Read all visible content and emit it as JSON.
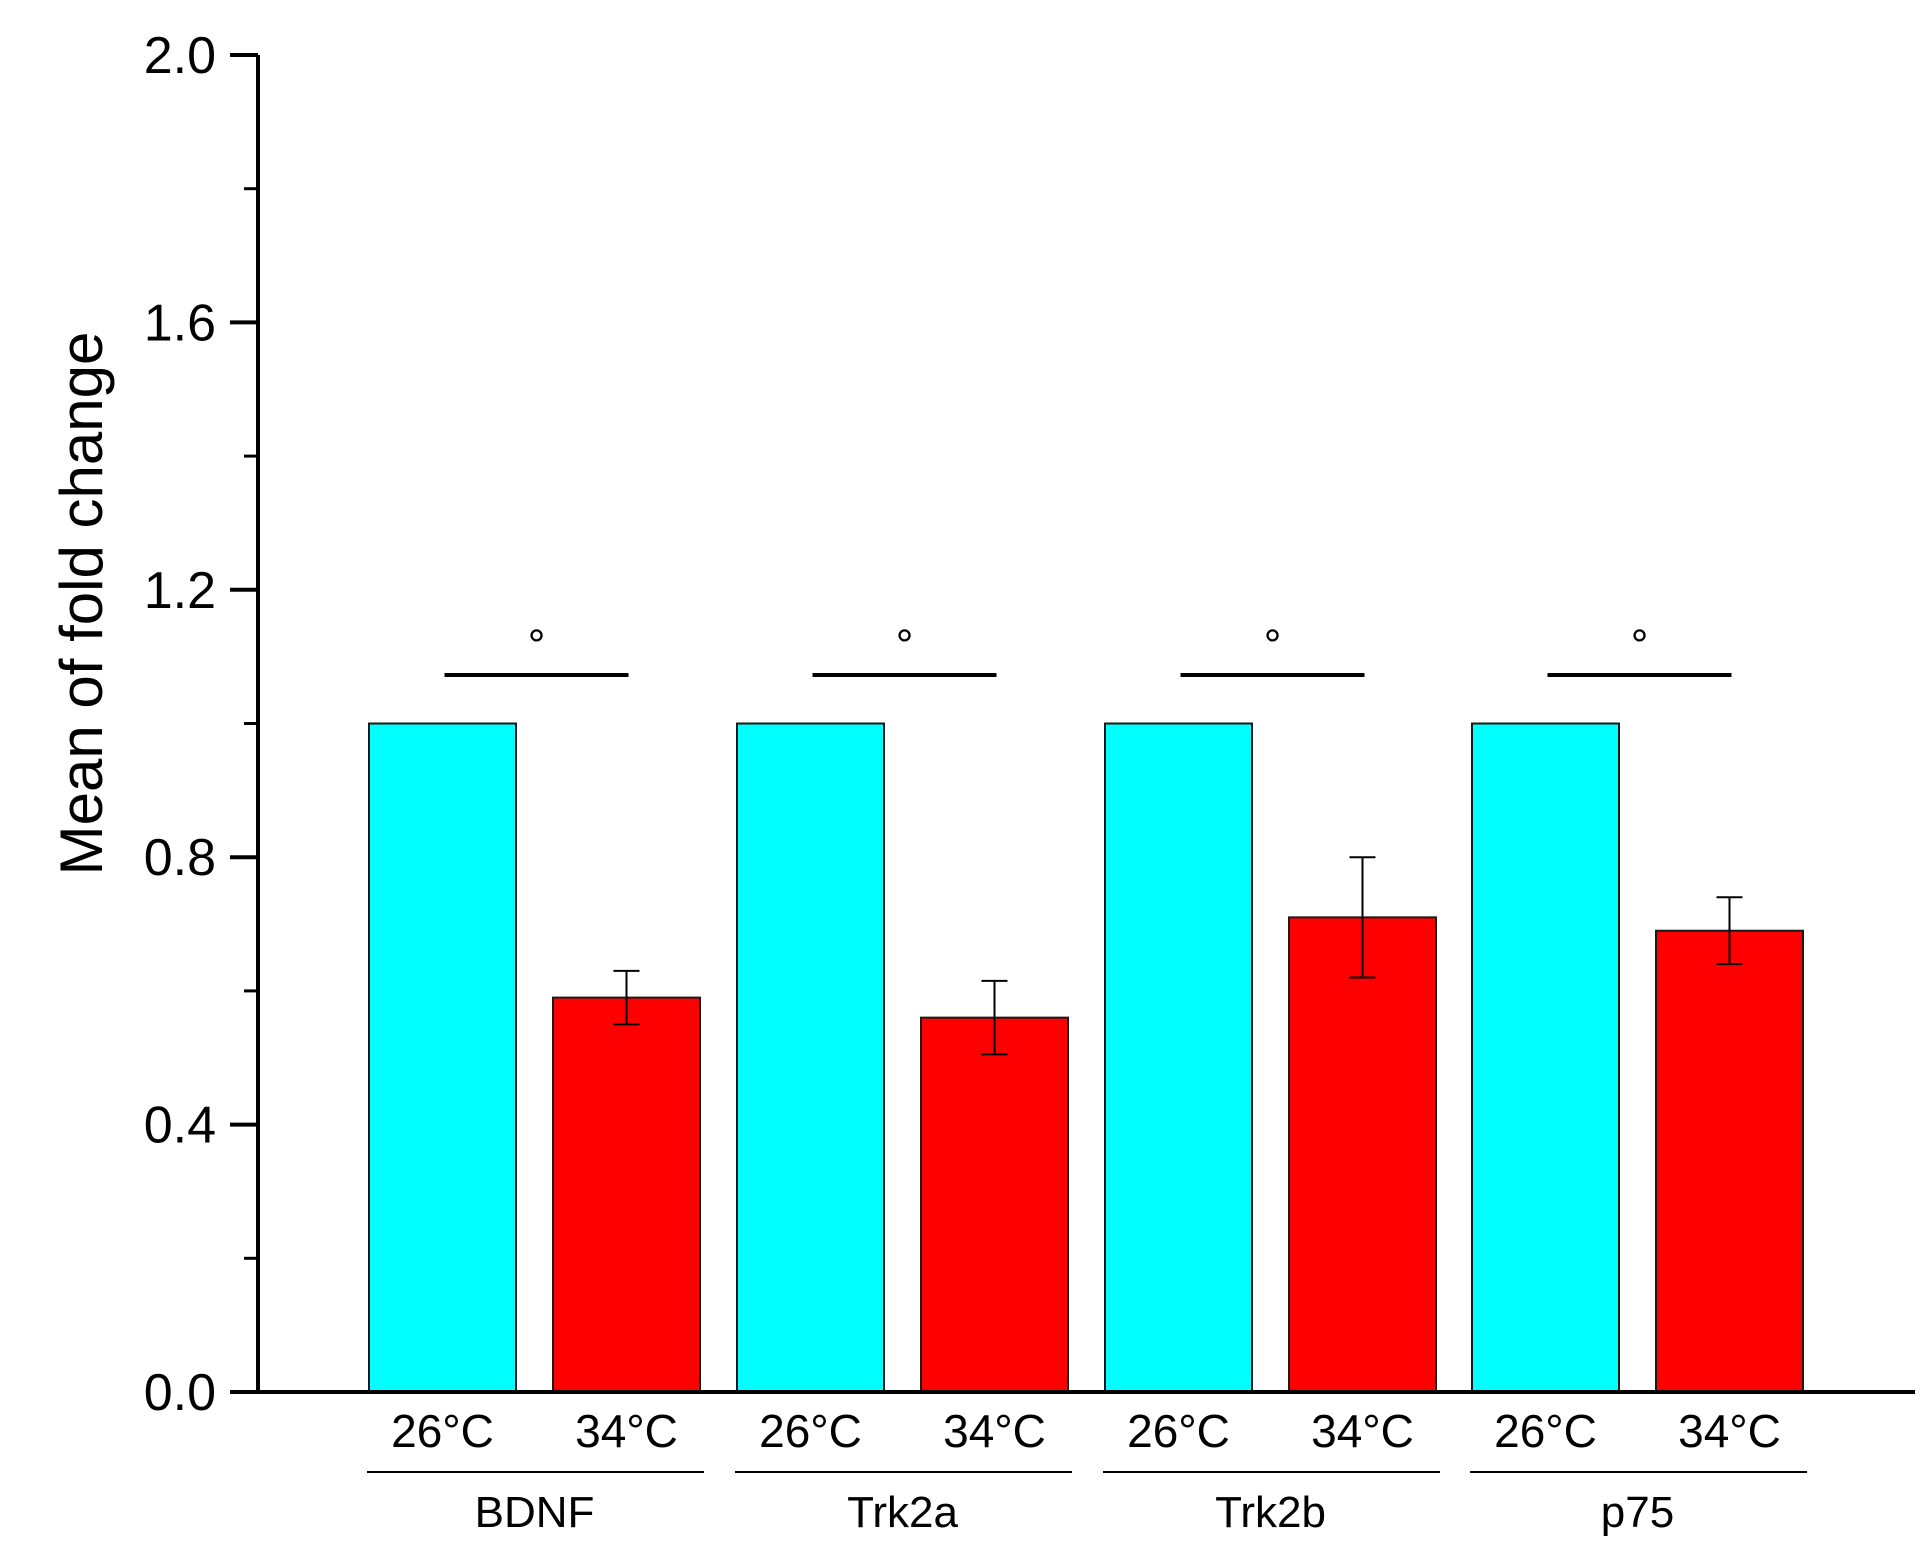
{
  "colors": {
    "control": "#00ffff",
    "treatment": "#ff0000",
    "axis": "#000000"
  },
  "chart_data": {
    "type": "bar",
    "title": "",
    "ylabel": "Mean of fold change",
    "xlabel": "",
    "ylim": [
      0,
      2.0
    ],
    "yticks": [
      "0.0",
      "0.4",
      "0.8",
      "1.2",
      "1.6",
      "2.0"
    ],
    "ytick_values": [
      0,
      0.4,
      0.8,
      1.2,
      1.6,
      2.0
    ],
    "minor_tick_step": 0.2,
    "grid": false,
    "legend": "none",
    "groups": [
      {
        "name": "BDNF",
        "significance": "°",
        "bars": [
          {
            "condition": "26°C",
            "value": 1.0,
            "error": null,
            "color_key": "control"
          },
          {
            "condition": "34°C",
            "value": 0.59,
            "error": 0.04,
            "color_key": "treatment"
          }
        ]
      },
      {
        "name": "Trk2a",
        "significance": "°",
        "bars": [
          {
            "condition": "26°C",
            "value": 1.0,
            "error": null,
            "color_key": "control"
          },
          {
            "condition": "34°C",
            "value": 0.56,
            "error": 0.055,
            "color_key": "treatment"
          }
        ]
      },
      {
        "name": "Trk2b",
        "significance": "°",
        "bars": [
          {
            "condition": "26°C",
            "value": 1.0,
            "error": null,
            "color_key": "control"
          },
          {
            "condition": "34°C",
            "value": 0.71,
            "error": 0.09,
            "color_key": "treatment"
          }
        ]
      },
      {
        "name": "p75",
        "significance": "°",
        "bars": [
          {
            "condition": "26°C",
            "value": 1.0,
            "error": null,
            "color_key": "control"
          },
          {
            "condition": "34°C",
            "value": 0.69,
            "error": 0.05,
            "color_key": "treatment"
          }
        ]
      }
    ]
  }
}
